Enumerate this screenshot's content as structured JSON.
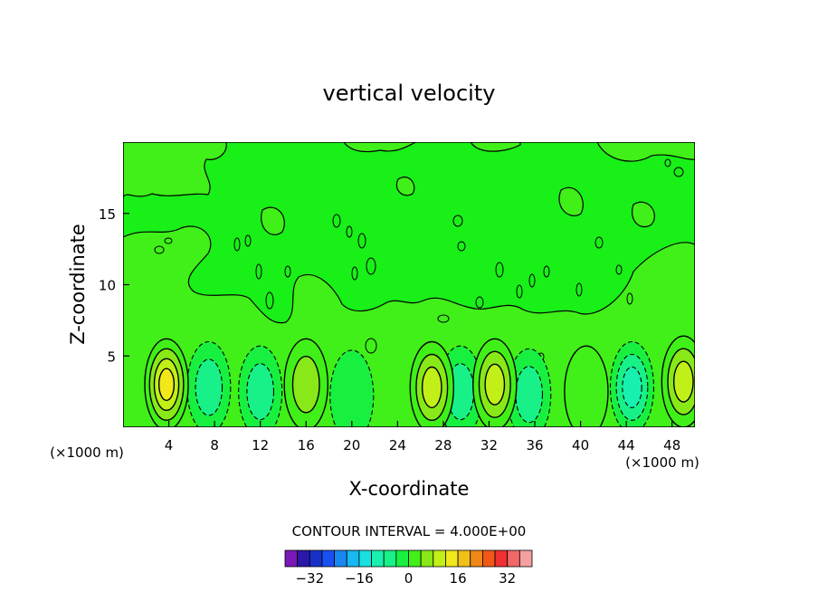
{
  "chart_data": {
    "type": "heatmap",
    "title": "vertical velocity",
    "xlabel": "X-coordinate",
    "ylabel": "Z-coordinate",
    "x_unit_label": "(×1000 m)",
    "z_unit_label": "(×1000 m)",
    "xlim": [
      0,
      50
    ],
    "ylim": [
      0,
      20
    ],
    "x_ticks": [
      4,
      8,
      12,
      16,
      20,
      24,
      28,
      32,
      36,
      40,
      44,
      48
    ],
    "y_ticks": [
      5,
      10,
      15
    ],
    "contour_interval_label": "CONTOUR INTERVAL = 4.000E+00",
    "contour_interval": 4.0,
    "colorbar": {
      "levels": [
        -36,
        -32,
        -28,
        -24,
        -20,
        -16,
        -12,
        -8,
        -4,
        0,
        4,
        8,
        12,
        16,
        20,
        24,
        28,
        32,
        36
      ],
      "tick_values": [
        -32,
        -16,
        0,
        16,
        32
      ],
      "tick_labels": [
        "−32",
        "−16",
        "0",
        "16",
        "32"
      ],
      "colors": [
        "#7a18b8",
        "#2a18a8",
        "#1830c8",
        "#1850f0",
        "#1888f0",
        "#18b8f0",
        "#18e0e0",
        "#18f0b0",
        "#18f088",
        "#18f040",
        "#40f018",
        "#88e818",
        "#c0f018",
        "#f0e818",
        "#f0c018",
        "#f08818",
        "#f05818",
        "#f03030",
        "#f06868",
        "#f4a0a0"
      ]
    },
    "updraft_cores": [
      {
        "x": 3.8,
        "z": 3.0,
        "peak_w": 14
      },
      {
        "x": 16.0,
        "z": 3.0,
        "peak_w": 6
      },
      {
        "x": 27.0,
        "z": 2.8,
        "peak_w": 10
      },
      {
        "x": 32.5,
        "z": 3.0,
        "peak_w": 12
      },
      {
        "x": 40.5,
        "z": 2.5,
        "peak_w": 4
      },
      {
        "x": 49.0,
        "z": 3.2,
        "peak_w": 12
      }
    ],
    "downdraft_cores": [
      {
        "x": 7.5,
        "z": 2.8,
        "min_w": -8
      },
      {
        "x": 12.0,
        "z": 2.5,
        "min_w": -6
      },
      {
        "x": 20.0,
        "z": 2.2,
        "min_w": -4
      },
      {
        "x": 29.5,
        "z": 2.5,
        "min_w": -8
      },
      {
        "x": 35.5,
        "z": 2.3,
        "min_w": -8
      },
      {
        "x": 44.5,
        "z": 2.8,
        "min_w": -10
      }
    ],
    "background_upper_level_w": 0
  }
}
